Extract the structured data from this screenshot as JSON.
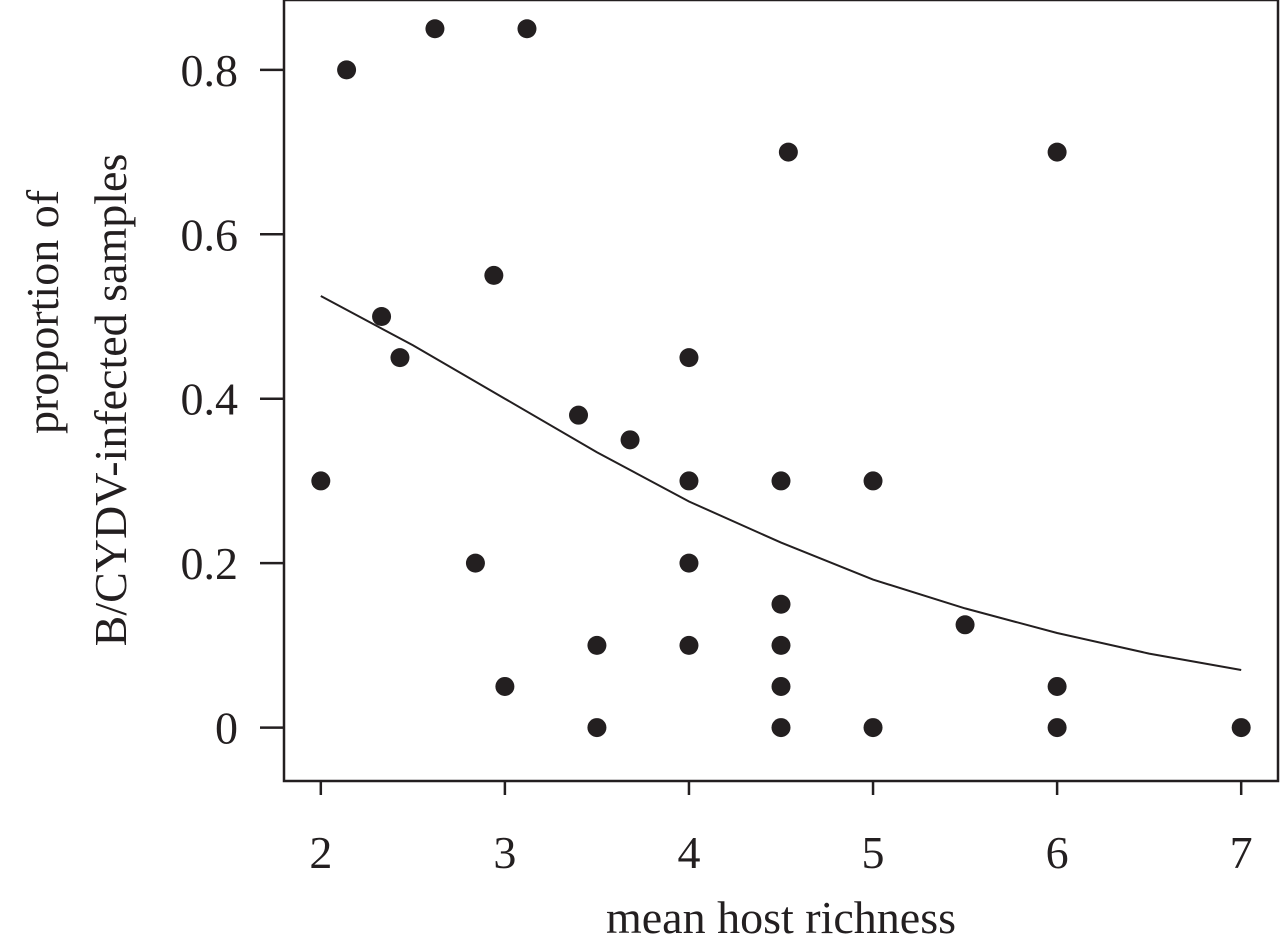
{
  "chart_data": {
    "type": "scatter",
    "title": "",
    "xlabel": "mean host richness",
    "ylabel_lines": [
      "proportion of",
      "B/CYDV-infected samples"
    ],
    "xlim": [
      1.8,
      7.2
    ],
    "ylim": [
      -0.065,
      0.885
    ],
    "x_ticks": [
      2,
      3,
      4,
      5,
      6,
      7
    ],
    "y_ticks": [
      0,
      0.2,
      0.4,
      0.6,
      0.8
    ],
    "y_tick_labels": [
      "0",
      "0.2",
      "0.4",
      "0.6",
      "0.8"
    ],
    "grid": false,
    "legend": "none",
    "colors": {
      "ink": "#231f20"
    },
    "points": [
      {
        "x": 2.0,
        "y": 0.3
      },
      {
        "x": 2.14,
        "y": 0.8
      },
      {
        "x": 2.33,
        "y": 0.5
      },
      {
        "x": 2.43,
        "y": 0.45
      },
      {
        "x": 2.62,
        "y": 0.85
      },
      {
        "x": 2.84,
        "y": 0.2
      },
      {
        "x": 2.94,
        "y": 0.55
      },
      {
        "x": 3.0,
        "y": 0.05
      },
      {
        "x": 3.12,
        "y": 0.85
      },
      {
        "x": 3.4,
        "y": 0.38
      },
      {
        "x": 3.5,
        "y": 0.1
      },
      {
        "x": 3.5,
        "y": 0.0
      },
      {
        "x": 3.68,
        "y": 0.35
      },
      {
        "x": 4.0,
        "y": 0.45
      },
      {
        "x": 4.0,
        "y": 0.3
      },
      {
        "x": 4.0,
        "y": 0.2
      },
      {
        "x": 4.0,
        "y": 0.1
      },
      {
        "x": 4.5,
        "y": 0.3
      },
      {
        "x": 4.5,
        "y": 0.15
      },
      {
        "x": 4.5,
        "y": 0.1
      },
      {
        "x": 4.5,
        "y": 0.05
      },
      {
        "x": 4.5,
        "y": 0.0
      },
      {
        "x": 4.54,
        "y": 0.7
      },
      {
        "x": 5.0,
        "y": 0.3
      },
      {
        "x": 5.0,
        "y": 0.0
      },
      {
        "x": 5.5,
        "y": 0.125
      },
      {
        "x": 6.0,
        "y": 0.7
      },
      {
        "x": 6.0,
        "y": 0.05
      },
      {
        "x": 6.0,
        "y": 0.0
      },
      {
        "x": 7.0,
        "y": 0.0
      }
    ],
    "fit_curve": {
      "type": "line",
      "x": [
        2.0,
        2.5,
        3.0,
        3.5,
        4.0,
        4.5,
        5.0,
        5.5,
        6.0,
        6.5,
        7.0
      ],
      "y": [
        0.525,
        0.465,
        0.4,
        0.335,
        0.275,
        0.225,
        0.18,
        0.145,
        0.115,
        0.09,
        0.07
      ]
    }
  }
}
